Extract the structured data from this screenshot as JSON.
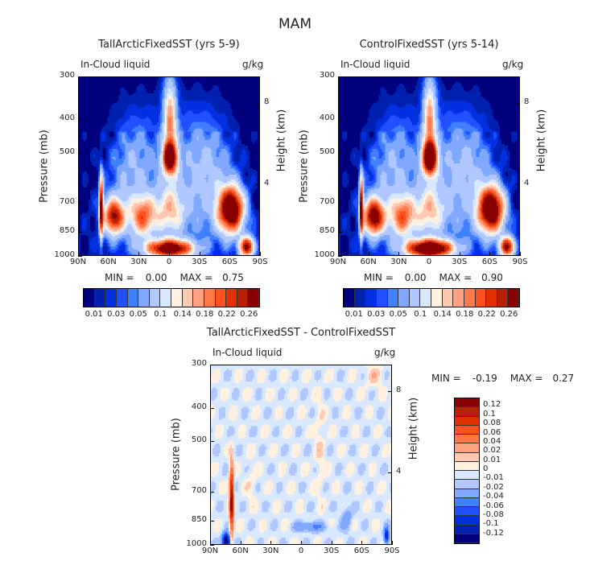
{
  "title": "MAM",
  "colors16": [
    "#00007f",
    "#0020b0",
    "#0030e0",
    "#2050ff",
    "#4080ff",
    "#80a8ff",
    "#b0c8ff",
    "#d8e8ff",
    "#fff0e0",
    "#ffc8b0",
    "#ffa080",
    "#ff7848",
    "#ff5020",
    "#e03000",
    "#b82000",
    "#880000"
  ],
  "chart_data": [
    {
      "type": "heatmap",
      "title": "TallArcticFixedSST (yrs 5-9)",
      "subtitle_left": "In-Cloud liquid",
      "units": "g/kg",
      "ylabel": "Pressure (mb)",
      "ylabel_right": "Height (km)",
      "x_ticks": [
        "90N",
        "60N",
        "30N",
        "0",
        "30S",
        "60S",
        "90S"
      ],
      "y_ticks": [
        300,
        400,
        500,
        700,
        850,
        1000
      ],
      "y_right_ticks": [
        8,
        4
      ],
      "xlim": [
        90,
        -90
      ],
      "ylim": [
        1000,
        300
      ],
      "y_scale": "log",
      "min_label": "MIN =",
      "min_value": "0.00",
      "max_label": "MAX =",
      "max_value": "0.75",
      "colorbar_labels": [
        "0.01",
        "0.03",
        "0.05",
        "0.1",
        "0.14",
        "0.18",
        "0.22",
        "0.26"
      ]
    },
    {
      "type": "heatmap",
      "title": "ControlFixedSST (yrs 5-14)",
      "subtitle_left": "In-Cloud liquid",
      "units": "g/kg",
      "ylabel": "Pressure (mb)",
      "ylabel_right": "Height (km)",
      "x_ticks": [
        "90N",
        "60N",
        "30N",
        "0",
        "30S",
        "60S",
        "90S"
      ],
      "y_ticks": [
        300,
        400,
        500,
        700,
        850,
        1000
      ],
      "y_right_ticks": [
        8,
        4
      ],
      "xlim": [
        90,
        -90
      ],
      "ylim": [
        1000,
        300
      ],
      "y_scale": "log",
      "min_label": "MIN =",
      "min_value": "0.00",
      "max_label": "MAX =",
      "max_value": "0.90",
      "colorbar_labels": [
        "0.01",
        "0.03",
        "0.05",
        "0.1",
        "0.14",
        "0.18",
        "0.22",
        "0.26"
      ]
    },
    {
      "type": "heatmap",
      "title": "TallArcticFixedSST - ControlFixedSST",
      "subtitle_left": "In-Cloud liquid",
      "units": "g/kg",
      "ylabel": "Pressure (mb)",
      "ylabel_right": "Height (km)",
      "x_ticks": [
        "90N",
        "60N",
        "30N",
        "0",
        "30S",
        "60S",
        "90S"
      ],
      "y_ticks": [
        300,
        400,
        500,
        700,
        850,
        1000
      ],
      "y_right_ticks": [
        8,
        4
      ],
      "xlim": [
        90,
        -90
      ],
      "ylim": [
        1000,
        300
      ],
      "y_scale": "log",
      "min_label": "MIN =",
      "min_value": "-0.19",
      "max_label": "MAX =",
      "max_value": "0.27",
      "colorbar_labels": [
        "0.12",
        "0.1",
        "0.08",
        "0.06",
        "0.04",
        "0.02",
        "0.01",
        "0",
        "-0.01",
        "-0.02",
        "-0.04",
        "-0.06",
        "-0.08",
        "-0.1",
        "-0.12"
      ]
    }
  ]
}
